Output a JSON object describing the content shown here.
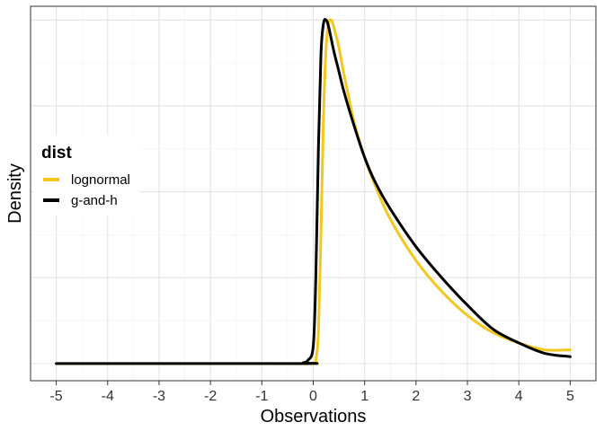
{
  "chart_data": {
    "type": "line",
    "title": "",
    "xlabel": "Observations",
    "ylabel": "Density",
    "xlim": [
      -5.5,
      5.5
    ],
    "ylim": [
      -0.05,
      1.04
    ],
    "x_ticks": [
      -5,
      -4,
      -3,
      -2,
      -1,
      0,
      1,
      2,
      3,
      4,
      5
    ],
    "x_tick_labels": [
      "-5",
      "-4",
      "-3",
      "-2",
      "-1",
      "0",
      "1",
      "2",
      "3",
      "4",
      "5"
    ],
    "y_tick_labels_visible": false,
    "grid": true,
    "legend": {
      "title": "dist",
      "position": "left",
      "entries": [
        "lognormal",
        "g-and-h"
      ]
    },
    "series": [
      {
        "name": "lognormal",
        "color": "#F2C81E",
        "x": [
          -5,
          -1,
          0,
          0.05,
          0.1,
          0.15,
          0.2,
          0.25,
          0.3,
          0.35,
          0.4,
          0.5,
          0.6,
          0.7,
          0.8,
          1.0,
          1.2,
          1.5,
          2.0,
          2.5,
          3.0,
          3.5,
          4.0,
          4.5,
          5.0
        ],
        "y": [
          0,
          0,
          0,
          0.01,
          0.09,
          0.38,
          0.72,
          0.92,
          0.99,
          1.0,
          0.98,
          0.92,
          0.84,
          0.77,
          0.7,
          0.6,
          0.52,
          0.42,
          0.3,
          0.21,
          0.14,
          0.09,
          0.06,
          0.04,
          0.04
        ]
      },
      {
        "name": "g-and-h",
        "color": "#000000",
        "x": [
          -5,
          -0.3,
          -0.2,
          -0.1,
          0,
          0.05,
          0.1,
          0.15,
          0.2,
          0.25,
          0.3,
          0.4,
          0.5,
          0.6,
          0.8,
          1.0,
          1.2,
          1.5,
          2.0,
          2.5,
          3.0,
          3.5,
          4.0,
          4.5,
          5.0
        ],
        "y": [
          0,
          0,
          0.002,
          0.01,
          0.05,
          0.25,
          0.62,
          0.9,
          0.99,
          1.0,
          0.98,
          0.91,
          0.85,
          0.79,
          0.69,
          0.6,
          0.53,
          0.45,
          0.34,
          0.25,
          0.17,
          0.1,
          0.06,
          0.03,
          0.02
        ]
      }
    ]
  }
}
